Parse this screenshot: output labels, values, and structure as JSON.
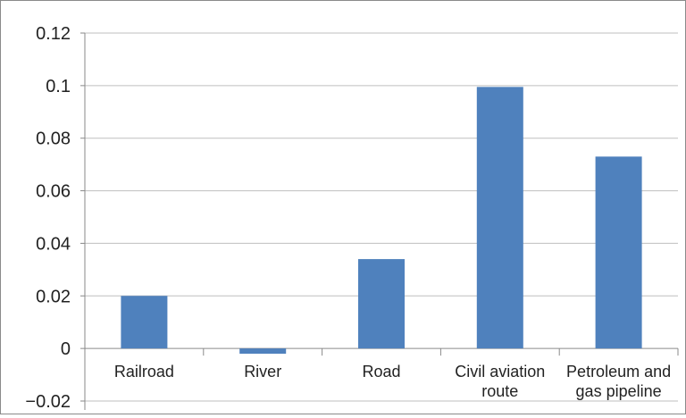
{
  "chart_data": {
    "type": "bar",
    "categories": [
      "Railroad",
      "River",
      "Road",
      "Civil aviation route",
      "Petroleum and gas pipeline"
    ],
    "category_lines": [
      [
        "Railroad"
      ],
      [
        "River"
      ],
      [
        "Road"
      ],
      [
        "Civil aviation",
        "route"
      ],
      [
        "Petroleum and",
        "gas pipeline"
      ]
    ],
    "values": [
      0.02,
      -0.002,
      0.034,
      0.0995,
      0.073
    ],
    "ylim": [
      -0.02,
      0.12
    ],
    "yticks": [
      0.12,
      0.1,
      0.08,
      0.06,
      0.04,
      0.02,
      0,
      -0.02
    ],
    "ytick_labels": [
      "0.12",
      "0.1",
      "0.08",
      "0.06",
      "0.04",
      "0.02",
      "0",
      "−0.02"
    ],
    "title": "",
    "xlabel": "",
    "ylabel": "",
    "grid": true,
    "legend": "none",
    "bar_color": "#4f81bd",
    "grid_color": "#bfbfbf",
    "axis_color": "#8a8a8a"
  }
}
